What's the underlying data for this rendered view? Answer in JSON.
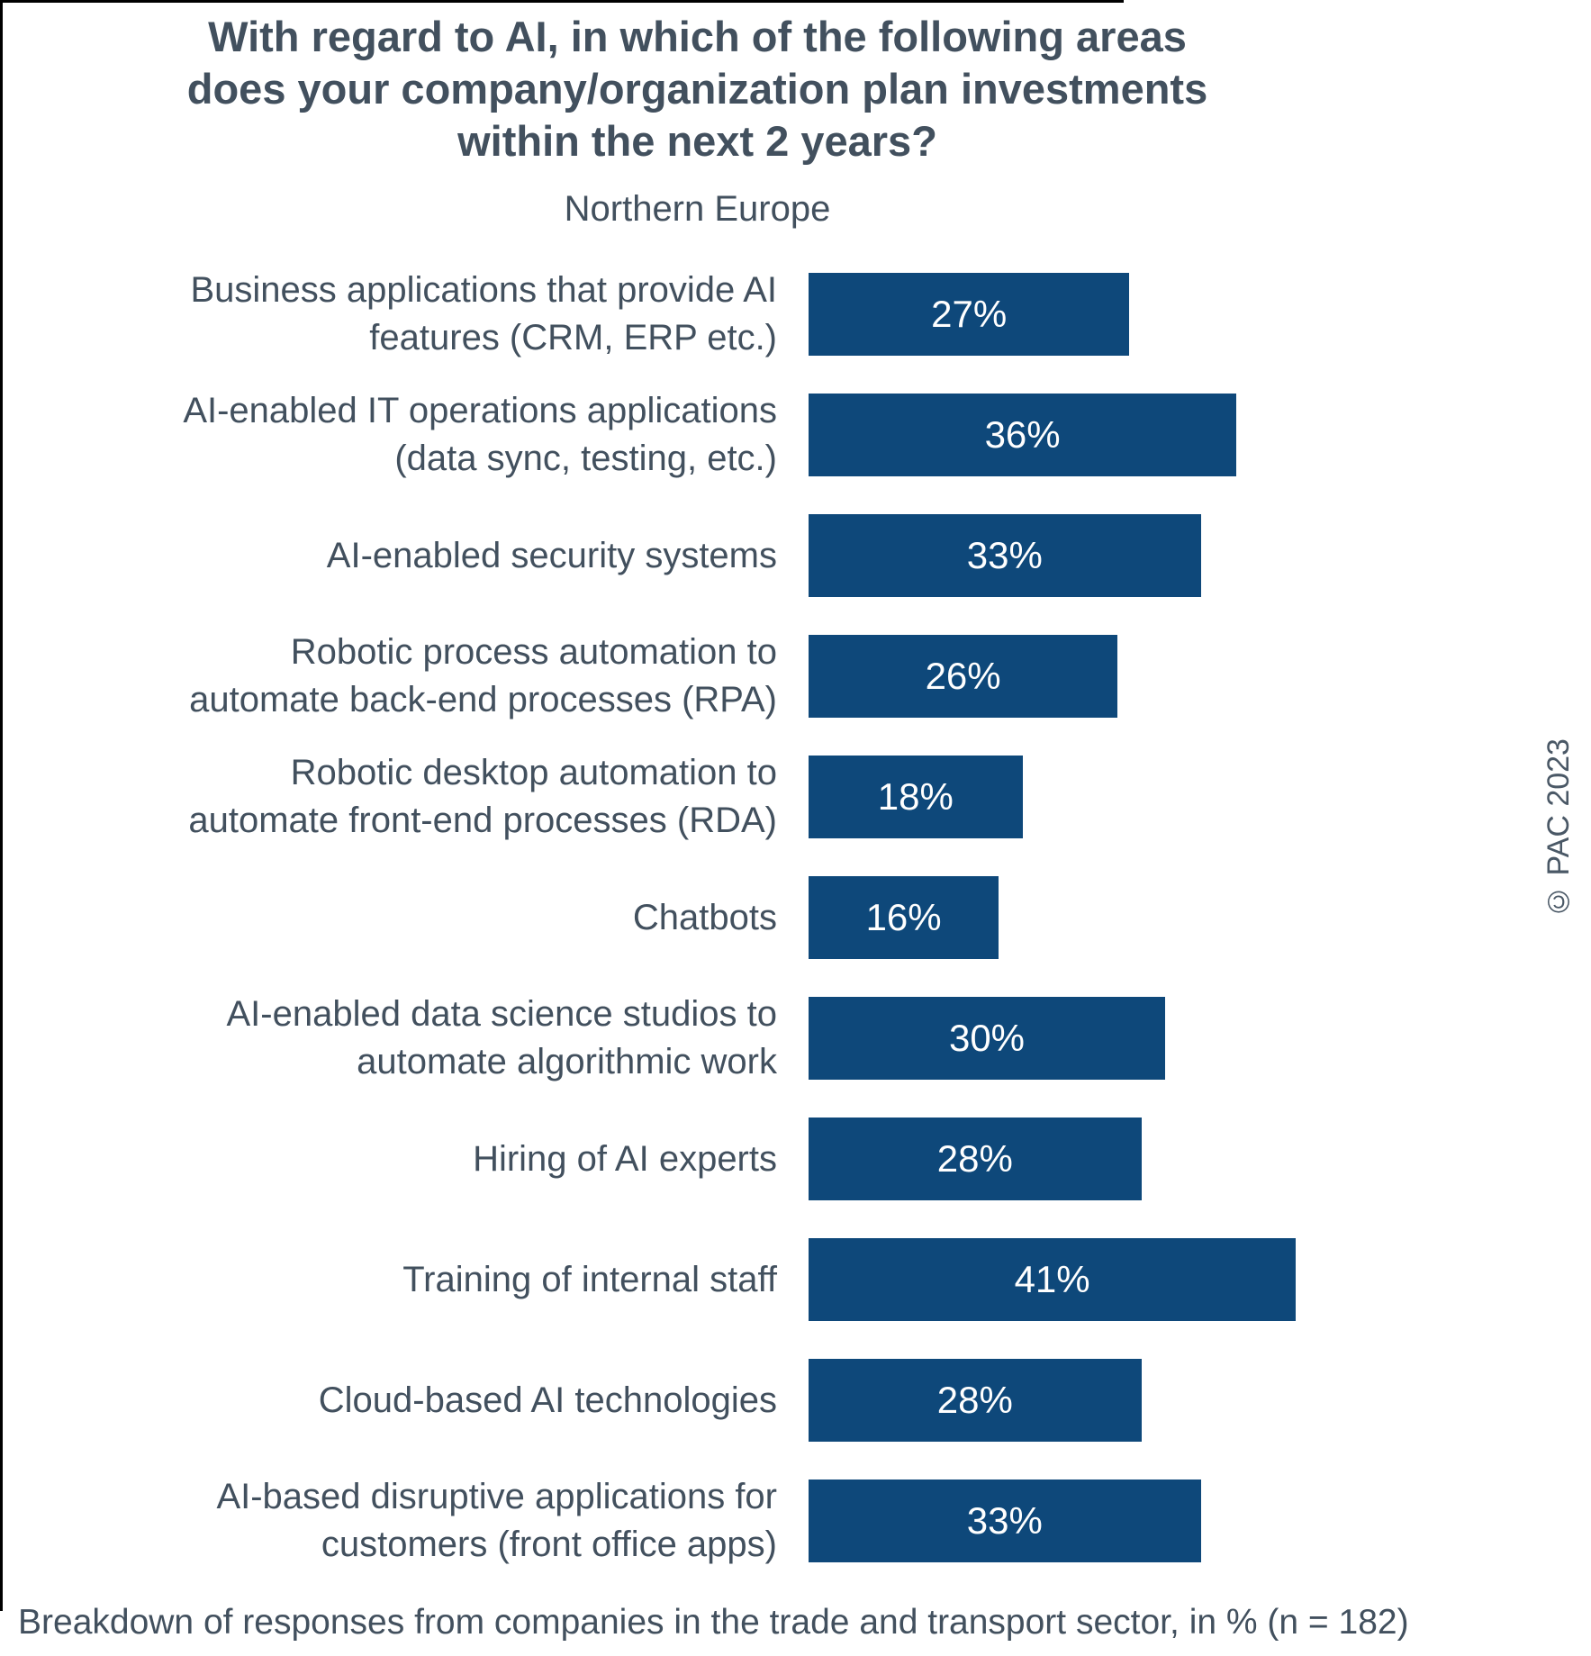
{
  "header": {
    "title_lines": [
      "With regard to AI, in which of the following areas",
      "does your company/organization plan investments",
      "within the next 2 years?"
    ],
    "title": "With regard to AI, in which of the following areas does your company/organization plan investments within the next 2 years?",
    "subtitle": "Northern Europe"
  },
  "footer": {
    "note": "Breakdown of responses from companies in the trade and transport sector, in % (n = 182)"
  },
  "watermark": "© PAC 2023",
  "colors": {
    "bar": "#0E487A",
    "text": "#42505E",
    "bar_label": "#FFFFFF",
    "frame": "#000000",
    "background": "#FFFFFF"
  },
  "chart_data": {
    "type": "bar",
    "orientation": "horizontal",
    "unit": "%",
    "grid": false,
    "legend": false,
    "value_labels_position": "inside-center",
    "categories": [
      "Business applications that provide AI\nfeatures (CRM, ERP etc.)",
      "AI-enabled IT operations applications\n(data sync, testing, etc.)",
      "AI-enabled security systems",
      "Robotic process automation to\nautomate back-end processes (RPA)",
      "Robotic desktop automation to\nautomate front-end processes (RDA)",
      "Chatbots",
      "AI-enabled data science studios to\nautomate algorithmic work",
      "Hiring of AI experts",
      "Training of internal staff",
      "Cloud-based AI technologies",
      "AI-based disruptive applications for\ncustomers (front office apps)"
    ],
    "values": [
      27,
      36,
      33,
      26,
      18,
      16,
      30,
      28,
      41,
      28,
      33
    ],
    "value_labels": [
      "27%",
      "36%",
      "33%",
      "26%",
      "18%",
      "16%",
      "30%",
      "28%",
      "41%",
      "28%",
      "33%"
    ]
  }
}
